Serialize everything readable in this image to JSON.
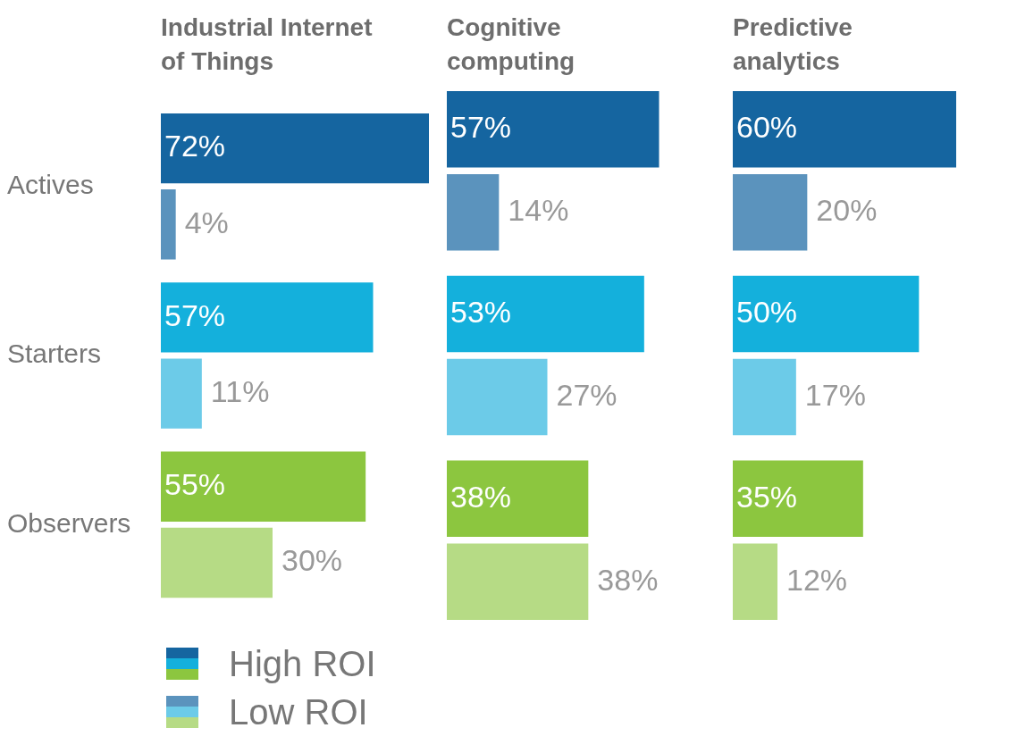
{
  "chart_data": [
    {
      "type": "bar",
      "orientation": "horizontal",
      "title": "Industrial Internet of Things",
      "categories": [
        "Actives",
        "Starters",
        "Observers"
      ],
      "xlim": [
        0,
        72
      ],
      "tick_labels": "y",
      "legend": "bottom left",
      "series": [
        {
          "name": "High ROI",
          "colors": [
            "#1565a0",
            "#14b0dc",
            "#8cc63f"
          ],
          "values": [
            72,
            57,
            55
          ],
          "value_labels": [
            "72%",
            "57%",
            "55%"
          ]
        },
        {
          "name": "Low ROI",
          "colors": [
            "#5b93bd",
            "#6ccbe8",
            "#b6db85"
          ],
          "values": [
            4,
            11,
            30
          ],
          "value_labels": [
            "4%",
            "11%",
            "30%"
          ]
        }
      ]
    },
    {
      "type": "bar",
      "orientation": "horizontal",
      "title": "Cognitive computing",
      "categories": [
        null,
        null,
        null
      ],
      "tick_labels": false,
      "series": [
        {
          "colors": [
            "#1565a0",
            "#14b0dc",
            "#8cc63f"
          ],
          "values": [
            57,
            53,
            38
          ],
          "value_labels": [
            "57%",
            "53%",
            "38%"
          ]
        },
        {
          "colors": [
            "#5b93bd",
            "#6ccbe8",
            "#b6db85"
          ],
          "values": [
            14,
            27,
            38
          ],
          "value_labels": [
            "14%",
            "27%",
            "38%"
          ]
        }
      ]
    },
    {
      "type": "bar",
      "orientation": "horizontal",
      "title": "Predictive analytics",
      "categories": [
        null,
        null,
        null
      ],
      "tick_labels": false,
      "series": [
        {
          "colors": [
            "#1565a0",
            "#14b0dc",
            "#8cc63f"
          ],
          "values": [
            60,
            50,
            35
          ],
          "value_labels": [
            "60%",
            "50%",
            "35%"
          ]
        },
        {
          "colors": [
            "#5b93bd",
            "#6ccbe8",
            "#b6db85"
          ],
          "values": [
            20,
            17,
            12
          ],
          "value_labels": [
            "20%",
            "17%",
            "12%"
          ]
        }
      ]
    }
  ]
}
